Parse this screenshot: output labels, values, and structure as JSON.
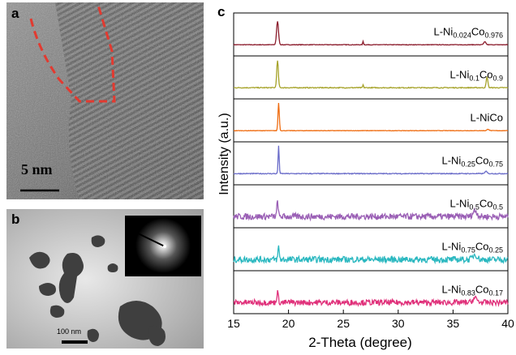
{
  "panels": {
    "a": {
      "label": "a",
      "scale_bar": "5 nm"
    },
    "b": {
      "label": "b",
      "scale_bar": "100 nm"
    },
    "c": {
      "label": "c"
    }
  },
  "chart_data": {
    "type": "line",
    "xlabel": "2-Theta (degree)",
    "ylabel": "Intensity (a.u.)",
    "xlim": [
      15,
      40
    ],
    "xticks": [
      15,
      20,
      25,
      30,
      35,
      40
    ],
    "layout": "stacked panels, one spectrum per panel",
    "series": [
      {
        "name": "L-Ni0.024Co0.976",
        "label_main": "L-Ni",
        "sub1": "0.024",
        "label_mid": "Co",
        "sub2": "0.976",
        "color": "#8b1c2c",
        "noise": 0.02,
        "peaks": [
          {
            "x": 19.0,
            "h": 0.82,
            "w": 0.18
          },
          {
            "x": 26.8,
            "h": 0.12,
            "w": 0.08
          },
          {
            "x": 37.9,
            "h": 0.1,
            "w": 0.2
          }
        ]
      },
      {
        "name": "L-Ni0.1Co0.9",
        "label_main": "L-Ni",
        "sub1": "0.1",
        "label_mid": "Co",
        "sub2": "0.9",
        "color": "#a6a32a",
        "noise": 0.03,
        "peaks": [
          {
            "x": 19.0,
            "h": 0.95,
            "w": 0.15
          },
          {
            "x": 26.8,
            "h": 0.1,
            "w": 0.08
          },
          {
            "x": 38.1,
            "h": 0.38,
            "w": 0.15
          }
        ]
      },
      {
        "name": "L-NiCo",
        "label_main": "L-NiCo",
        "sub1": "",
        "label_mid": "",
        "sub2": "",
        "color": "#ef6d12",
        "noise": 0.015,
        "peaks": [
          {
            "x": 19.1,
            "h": 0.98,
            "w": 0.12
          },
          {
            "x": 38.2,
            "h": 0.05,
            "w": 0.2
          }
        ]
      },
      {
        "name": "L-Ni0.25Co0.75",
        "label_main": "L-Ni",
        "sub1": "0.25",
        "label_mid": "Co",
        "sub2": "0.75",
        "color": "#6a6cc9",
        "noise": 0.03,
        "peaks": [
          {
            "x": 19.1,
            "h": 0.97,
            "w": 0.1
          },
          {
            "x": 38.0,
            "h": 0.08,
            "w": 0.2
          }
        ]
      },
      {
        "name": "L-Ni0.5Co0.5",
        "label_main": "L-Ni",
        "sub1": "0.5",
        "label_mid": "Co",
        "sub2": "0.5",
        "color": "#9a5fb5",
        "noise": 0.22,
        "peaks": [
          {
            "x": 19.0,
            "h": 0.55,
            "w": 0.12
          },
          {
            "x": 37.0,
            "h": 0.2,
            "w": 0.4
          }
        ]
      },
      {
        "name": "L-Ni0.75Co0.25",
        "label_main": "L-Ni",
        "sub1": "0.75",
        "label_mid": "Co",
        "sub2": "0.25",
        "color": "#2bb8c0",
        "noise": 0.22,
        "peaks": [
          {
            "x": 19.1,
            "h": 0.45,
            "w": 0.12
          },
          {
            "x": 37.0,
            "h": 0.18,
            "w": 0.4
          }
        ]
      },
      {
        "name": "L-Ni0.83Co0.17",
        "label_main": "L-Ni",
        "sub1": "0.83",
        "label_mid": "Co",
        "sub2": "0.17",
        "color": "#e0307a",
        "noise": 0.2,
        "peaks": [
          {
            "x": 19.0,
            "h": 0.35,
            "w": 0.15
          },
          {
            "x": 37.0,
            "h": 0.15,
            "w": 0.4
          }
        ]
      }
    ]
  }
}
